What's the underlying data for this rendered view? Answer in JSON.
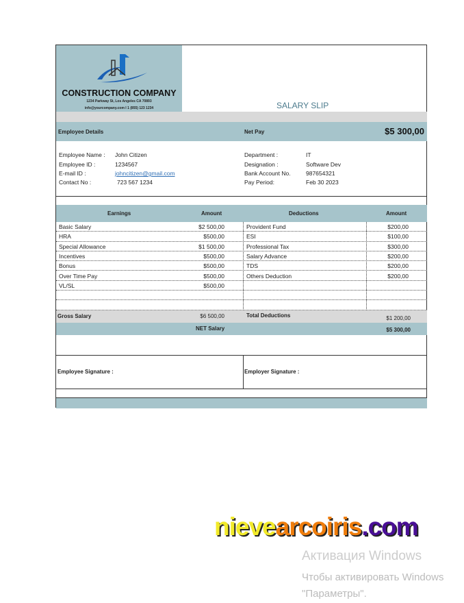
{
  "company": {
    "name": "CONSTRUCTION COMPANY",
    "address": "1234 Parkway St, Los Angeles CA 70893",
    "contact": "info@yourcompany.com I 1 (855) 123 1234"
  },
  "title": "SALARY SLIP",
  "bar": {
    "employee_details": "Employee Details",
    "net_pay_label": "Net Pay",
    "net_pay_value": "$5 300,00"
  },
  "details_left": [
    {
      "label": "Employee Name :",
      "value": "John Citizen"
    },
    {
      "label": "Employee ID :",
      "value": "1234567"
    },
    {
      "label": "E-mail ID :",
      "value": "johncitizen@gmail.com"
    },
    {
      "label": "Contact No :",
      "value": "723 567 1234"
    }
  ],
  "details_right": [
    {
      "label": "Department :",
      "value": "IT"
    },
    {
      "label": "Designation :",
      "value": "Software Dev"
    },
    {
      "label": "Bank Account No.",
      "value": "987654321"
    },
    {
      "label": "Pay Period:",
      "value": "Feb 30 2023"
    }
  ],
  "table": {
    "headers": [
      "Earnings",
      "Amount",
      "Deductions",
      "Amount"
    ],
    "rows": [
      [
        "Basic Salary",
        "$2 500,00",
        "Provident Fund",
        "$200,00"
      ],
      [
        "HRA",
        "$500,00",
        "ESI",
        "$100,00"
      ],
      [
        "Special Allowance",
        "$1 500,00",
        "Professional Tax",
        "$300,00"
      ],
      [
        "Incentives",
        "$500,00",
        "Salary Advance",
        "$200,00"
      ],
      [
        "Bonus",
        "$500,00",
        "TDS",
        "$200,00"
      ],
      [
        "Over Time Pay",
        "$500,00",
        "Others Deduction",
        "$200,00"
      ],
      [
        "VL/SL",
        "$500,00",
        "",
        ""
      ],
      [
        "",
        "",
        "",
        ""
      ],
      [
        "",
        "",
        "",
        ""
      ]
    ],
    "gross_label": "Gross Salary",
    "gross_value": "$6 500,00",
    "total_ded_label": "Total Deductions",
    "total_ded_value": "$1 200,00",
    "net_label": "NET Salary",
    "net_value": "$5 300,00"
  },
  "signatures": {
    "employee": "Employee Signature :",
    "employer": "Employer Signature :"
  },
  "colors": {
    "header_teal": "#a6c4cb",
    "band_grey": "#d9d9d9",
    "title": "#4b7a8c",
    "link": "#2f6fb5"
  },
  "watermark": {
    "logo": "nievearcoiris.com",
    "activation_line1": "Активация Windows",
    "activation_line2": "Чтобы активировать Windows",
    "activation_line3": "\"Параметры\"."
  }
}
